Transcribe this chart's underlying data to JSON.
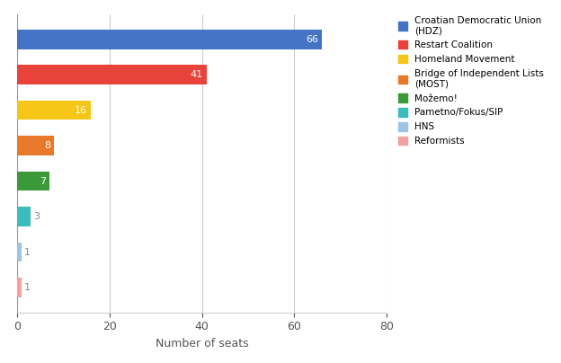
{
  "parties_top_to_bottom": [
    "Croatian Democratic Union\n(HDZ)",
    "Restart Coalition",
    "Homeland Movement",
    "Bridge of Independent Lists\n(MOST)",
    "Možemo!",
    "Pametno/Fokus/SIP",
    "HNS",
    "Reformists"
  ],
  "seats_top_to_bottom": [
    66,
    41,
    16,
    8,
    7,
    3,
    1,
    1
  ],
  "colors_top_to_bottom": [
    "#4472C4",
    "#E8433A",
    "#F5C518",
    "#E8792A",
    "#3A9A3A",
    "#3ABCBC",
    "#9DC3E6",
    "#F4A0A0"
  ],
  "legend_labels": [
    "Croatian Democratic Union\n(HDZ)",
    "Restart Coalition",
    "Homeland Movement",
    "Bridge of Independent Lists\n(MOST)",
    "Možemo!",
    "Pametno/Fokus/SIP",
    "HNS",
    "Reformists"
  ],
  "xlabel": "Number of seats",
  "xlim": [
    0,
    80
  ],
  "xticks": [
    0,
    20,
    40,
    60,
    80
  ],
  "background_color": "#ffffff",
  "grid_color": "#cccccc",
  "label_fontsize": 9,
  "tick_fontsize": 9,
  "value_fontsize": 8,
  "inside_label_threshold": 5,
  "bar_height": 0.55
}
